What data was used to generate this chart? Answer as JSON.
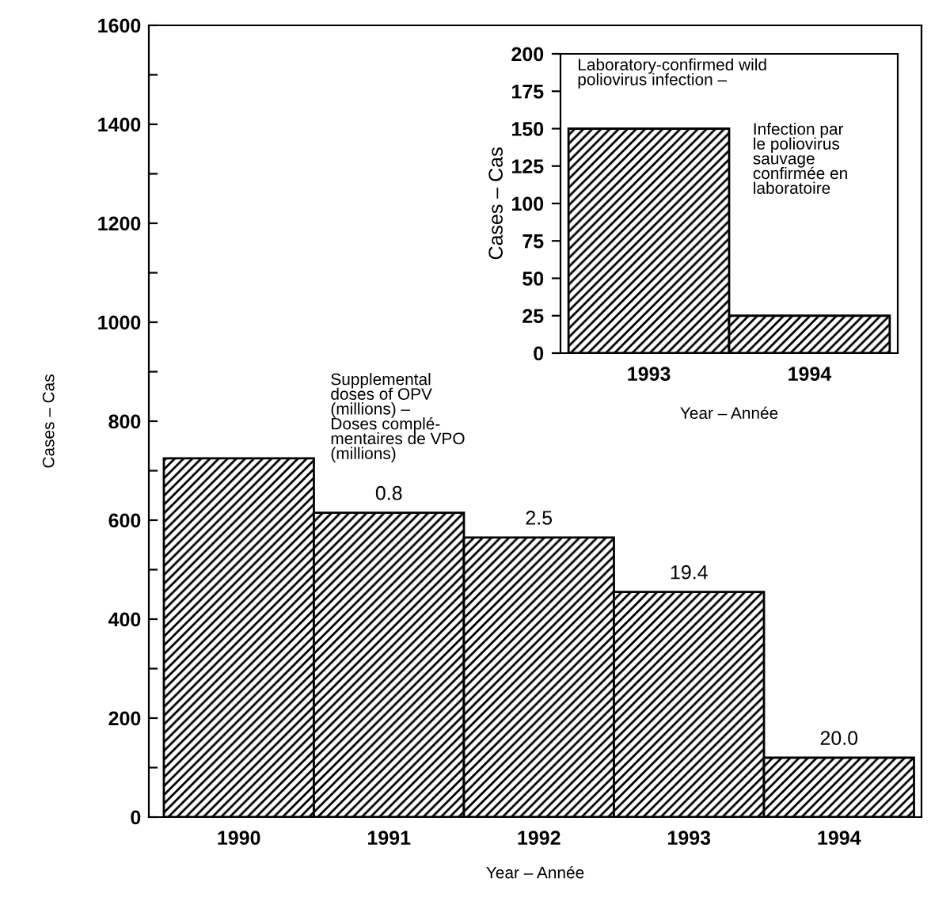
{
  "chart_data": [
    {
      "type": "bar",
      "xlabel": "Year – Année",
      "ylabel": "Cases – Cas",
      "categories": [
        "1990",
        "1991",
        "1992",
        "1993",
        "1994"
      ],
      "values": [
        725,
        615,
        565,
        455,
        120
      ],
      "color": "#000000",
      "annotations": [
        "Supplemental\ndoses of OPV\n(millions) –\nDoses complé-\nmentaires de VPO\n(millions)",
        {
          "text": "0.8",
          "x": "1991",
          "y": 615
        },
        {
          "text": "2.5",
          "x": "1992",
          "y": 565
        },
        {
          "text": "19.4",
          "x": "1993",
          "y": 455
        },
        {
          "text": "20.0",
          "x": "1994",
          "y": 120
        }
      ],
      "ylim": [
        0,
        1600
      ],
      "yticks": [
        0,
        {
          "value": 100,
          "label": null
        },
        200,
        {
          "value": 300,
          "label": null
        },
        400,
        {
          "value": 500,
          "label": null
        },
        600,
        {
          "value": 700,
          "label": null
        },
        800,
        {
          "value": 900,
          "label": null
        },
        1000,
        {
          "value": 1100,
          "label": null
        },
        1200,
        {
          "value": 1300,
          "label": null
        },
        1400,
        {
          "value": 1500,
          "label": null
        },
        1600
      ],
      "grid": false,
      "legend": false
    },
    {
      "type": "bar",
      "xlabel": "Year – Année",
      "ylabel": "Cases – Cas",
      "categories": [
        "1993",
        "1994"
      ],
      "values": [
        150,
        25
      ],
      "color": "#000000",
      "annotations": [
        "Laboratory-confirmed wild\npoliovirus infection –",
        "Infection par\nle poliovirus\nsauvage\nconfirmée en\nlaboratoire"
      ],
      "ylim": [
        0,
        200
      ],
      "yticks": [
        0,
        25,
        50,
        75,
        100,
        125,
        150,
        175,
        200
      ],
      "grid": false,
      "legend": false
    }
  ]
}
